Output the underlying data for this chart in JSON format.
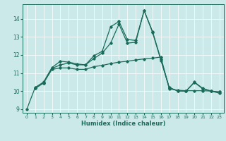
{
  "xlabel": "Humidex (Indice chaleur)",
  "bg_color": "#cce9e9",
  "line_color": "#1a6b5a",
  "xlim": [
    -0.5,
    23.5
  ],
  "ylim": [
    8.8,
    14.8
  ],
  "xticks": [
    0,
    1,
    2,
    3,
    4,
    5,
    6,
    7,
    8,
    9,
    10,
    11,
    12,
    13,
    14,
    15,
    16,
    17,
    18,
    19,
    20,
    21,
    22,
    23
  ],
  "yticks": [
    9,
    10,
    11,
    12,
    13,
    14
  ],
  "curve1_x": [
    0,
    1,
    2,
    3,
    4,
    5,
    6,
    7,
    8,
    9,
    10,
    11,
    12,
    13,
    14,
    15,
    16,
    17,
    18,
    19,
    20,
    21,
    22,
    23
  ],
  "curve1_y": [
    9.0,
    10.2,
    10.5,
    11.3,
    11.65,
    11.6,
    11.5,
    11.45,
    11.95,
    12.2,
    13.55,
    13.85,
    12.85,
    12.8,
    14.45,
    13.3,
    11.75,
    10.2,
    10.0,
    10.0,
    10.5,
    10.15,
    10.0,
    9.95
  ],
  "curve2_x": [
    1,
    2,
    3,
    4,
    5,
    6,
    7,
    8,
    9,
    10,
    11,
    12,
    13,
    14,
    15,
    16,
    17,
    18,
    19,
    20,
    21,
    22,
    23
  ],
  "curve2_y": [
    10.15,
    10.45,
    11.25,
    11.45,
    11.55,
    11.45,
    11.45,
    11.8,
    12.1,
    12.65,
    13.7,
    12.65,
    12.7,
    14.45,
    13.25,
    11.7,
    10.18,
    10.02,
    10.0,
    10.48,
    10.12,
    10.0,
    9.88
  ],
  "curve3_x": [
    1,
    2,
    3,
    4,
    5,
    6,
    7,
    8,
    9,
    10,
    11,
    12,
    13,
    14,
    15,
    16,
    17,
    18,
    19,
    20,
    21,
    22,
    23
  ],
  "curve3_y": [
    10.15,
    10.45,
    11.2,
    11.28,
    11.28,
    11.2,
    11.2,
    11.35,
    11.42,
    11.52,
    11.6,
    11.65,
    11.72,
    11.78,
    11.82,
    11.88,
    10.12,
    10.05,
    10.02,
    10.02,
    10.02,
    10.0,
    9.95
  ]
}
